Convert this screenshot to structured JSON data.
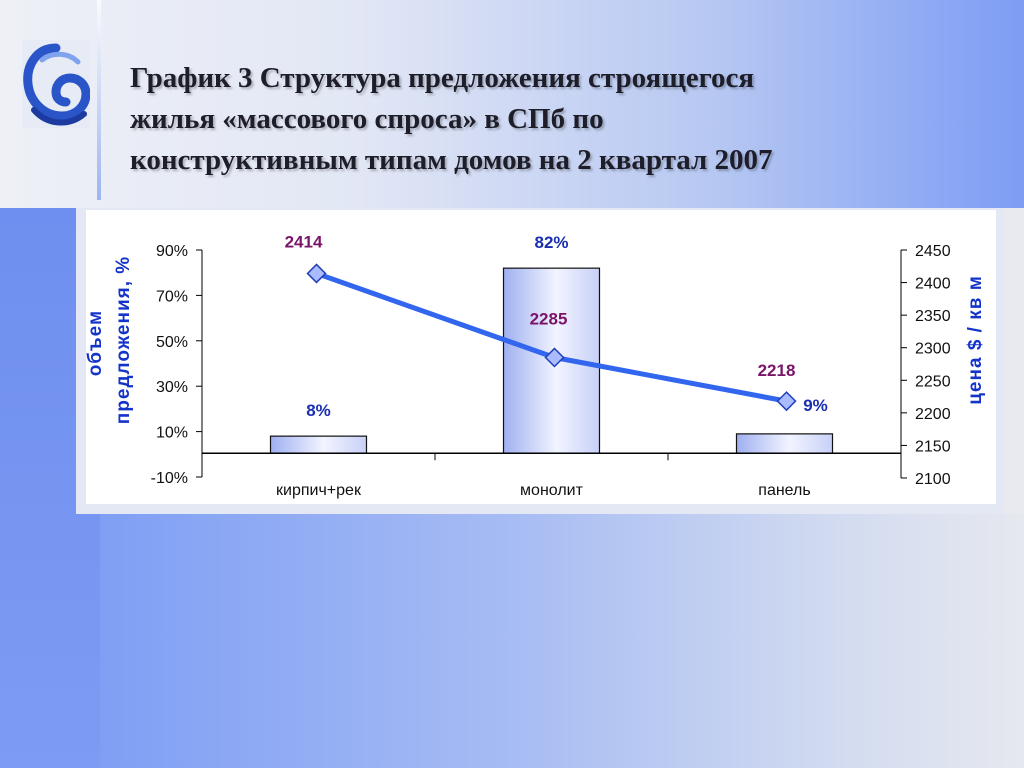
{
  "slide": {
    "title_lines": [
      "График 3 Структура предложения строящегося",
      "жилья «массового спроса» в СПб по",
      "конструктивным типам домов на 2 квартал 2007"
    ]
  },
  "colors": {
    "bar_fill_top": "#9fb0f0",
    "bar_fill_bottom": "#f2f4ff",
    "line": "#3366ee",
    "marker_fill": "#aabbff",
    "pct_label": "#1a2fb0",
    "price_label": "#7a1469",
    "axis_title": "#1433c8"
  },
  "chart_data": {
    "type": "bar",
    "categories": [
      "кирпич+рек",
      "монолит",
      "панель"
    ],
    "ylabel": "объем предложения, %",
    "y2label": "цена $ / кв м",
    "ylim": [
      -10,
      90
    ],
    "y_ticks": [
      "90%",
      "70%",
      "50%",
      "30%",
      "10%",
      "-10%"
    ],
    "y_tick_values": [
      90,
      70,
      50,
      30,
      10,
      -10
    ],
    "y2lim": [
      2100,
      2450
    ],
    "y2_ticks": [
      "2450",
      "2400",
      "2350",
      "2300",
      "2250",
      "2200",
      "2150",
      "2100"
    ],
    "y2_tick_values": [
      2450,
      2400,
      2350,
      2300,
      2250,
      2200,
      2150,
      2100
    ],
    "series": [
      {
        "type": "bar",
        "axis": "left",
        "values": [
          8,
          82,
          9
        ],
        "labels": [
          "8%",
          "82%",
          "9%"
        ]
      },
      {
        "type": "line",
        "axis": "right",
        "marker": "diamond",
        "values": [
          2414,
          2285,
          2218
        ],
        "labels": [
          "2414",
          "2285",
          "2218"
        ]
      }
    ],
    "grid": false,
    "legend": "none"
  }
}
